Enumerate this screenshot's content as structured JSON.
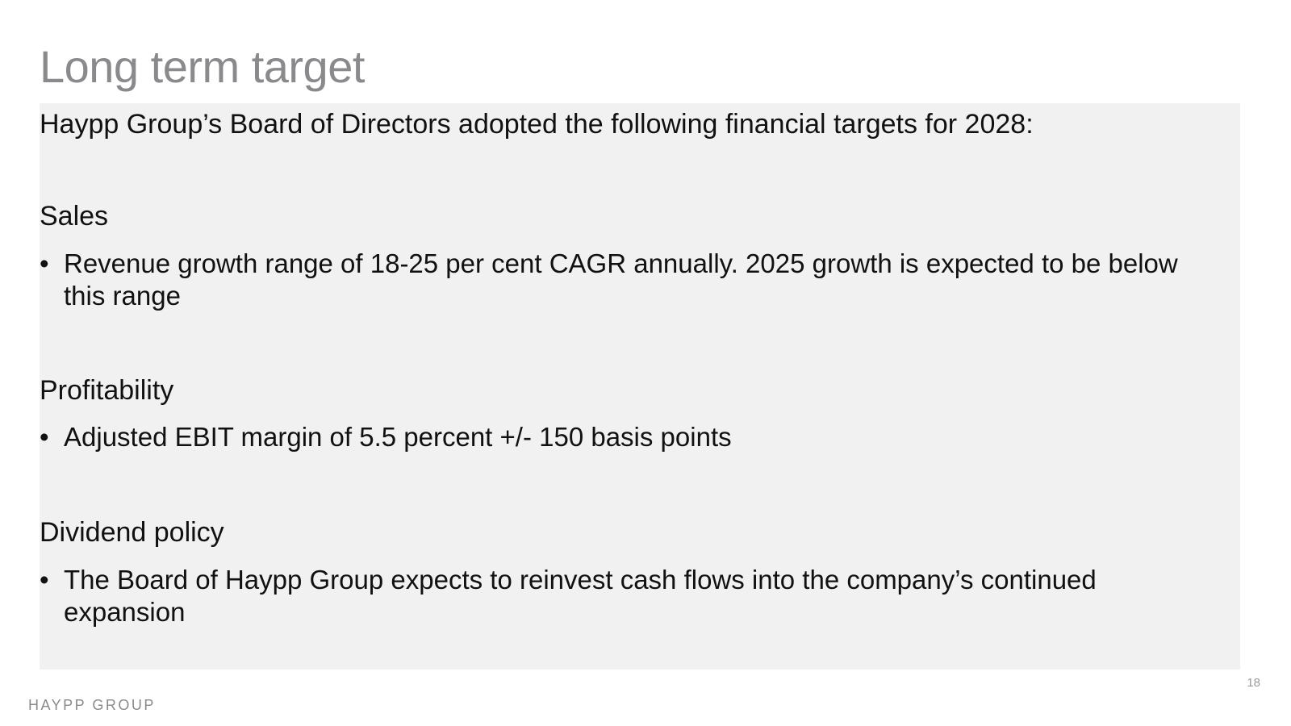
{
  "slide": {
    "title": "Long term target",
    "intro": "Haypp Group’s Board of Directors adopted the following financial targets for 2028:",
    "sections": [
      {
        "heading": "Sales",
        "bullet": "Revenue growth range of 18-25 per cent CAGR annually. 2025 growth is expected to be below this range"
      },
      {
        "heading": "Profitability",
        "bullet": "Adjusted EBIT margin of 5.5 percent +/- 150 basis points"
      },
      {
        "heading": "Dividend policy",
        "bullet": "The Board of Haypp Group expects to reinvest cash flows into the company’s continued expansion"
      }
    ],
    "bullet_symbol": "•",
    "page_number": "18"
  },
  "footer": {
    "logo_text": "HAYPP GROUP"
  },
  "colors": {
    "title": "#8a8a8d",
    "content_background": "#f1f1f1",
    "text": "#111111"
  }
}
